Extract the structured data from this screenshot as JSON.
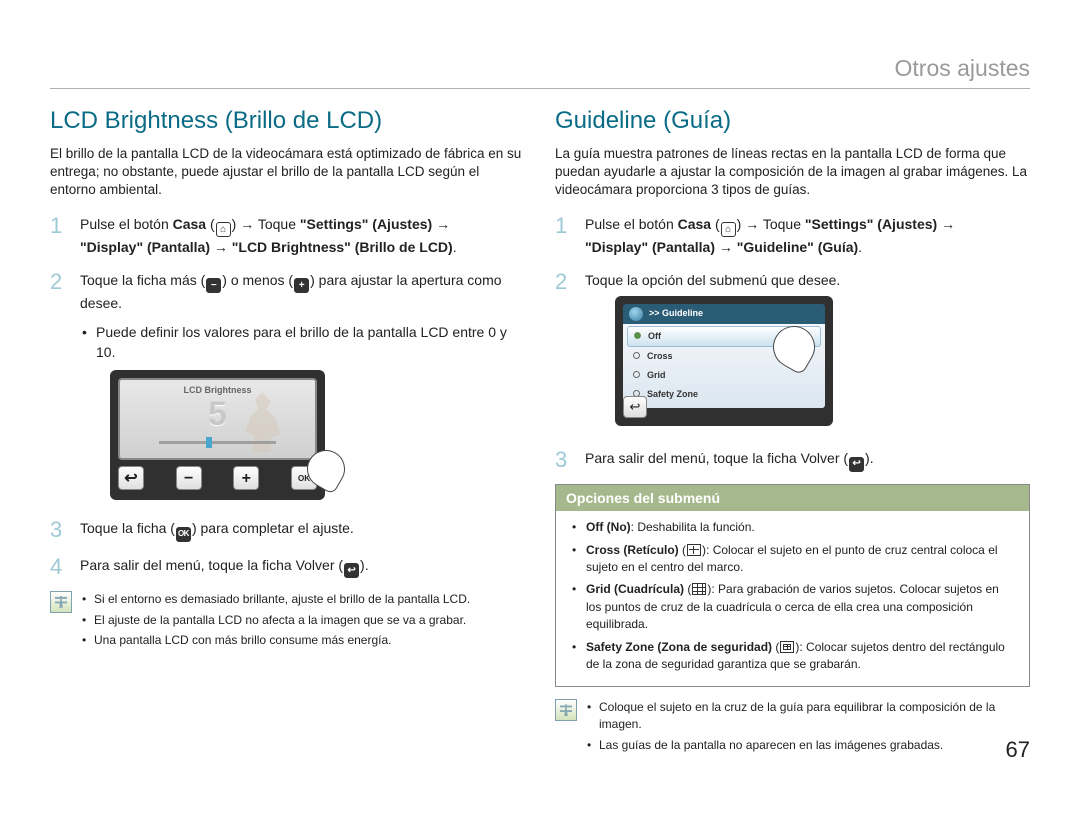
{
  "page": {
    "header": "Otros ajustes",
    "number": "67"
  },
  "lcd": {
    "heading": "LCD Brightness (Brillo de LCD)",
    "intro": "El brillo de la pantalla LCD de la videocámara está optimizado de fábrica en su entrega; no obstante, puede ajustar el brillo de la pantalla LCD según el entorno ambiental.",
    "step1_a": "Pulse el botón ",
    "step1_casa": "Casa",
    "step1_b": " → Toque ",
    "step1_settings": "\"Settings\" (Ajustes)",
    "step1_c": " → ",
    "step1_display": "\"Display\" (Pantalla) → \"LCD Brightness\" (Brillo de LCD)",
    "step1_d": ".",
    "step2_a": "Toque la ficha más (",
    "step2_b": ") o menos (",
    "step2_c": ") para ajustar la apertura como desee.",
    "step2_bullet": "Puede definir los valores para el brillo de la pantalla LCD entre 0 y 10.",
    "step3_a": "Toque la ficha (",
    "step3_b": ") para completar el ajuste.",
    "step4_a": "Para salir del menú, toque la ficha Volver (",
    "step4_b": ").",
    "info": {
      "b1": "Si el entorno es demasiado brillante, ajuste el brillo de la pantalla LCD.",
      "b2": "El ajuste de la pantalla LCD no afecta a la imagen que se va a grabar.",
      "b3": "Una pantalla LCD con más brillo consume más energía."
    },
    "img": {
      "title": "LCD Brightness",
      "value": "5",
      "minus": "−",
      "plus": "+",
      "back": "↩",
      "ok": "OK"
    }
  },
  "guide": {
    "heading": "Guideline (Guía)",
    "intro": "La guía muestra patrones de líneas rectas en la pantalla LCD de forma que puedan ayudarle a ajustar la composición de la imagen al grabar imágenes. La videocámara proporciona 3 tipos de guías.",
    "step1_a": "Pulse el botón ",
    "step1_casa": "Casa",
    "step1_b": " → Toque ",
    "step1_settings": "\"Settings\" (Ajustes)",
    "step1_c": " → ",
    "step1_display": "\"Display\" (Pantalla) → \"Guideline\" (Guía)",
    "step1_d": ".",
    "step2": "Toque la opción del submenú que desee.",
    "step3_a": "Para salir del menú, toque la ficha Volver (",
    "step3_b": ").",
    "img": {
      "title": ">> Guideline",
      "opt_off": "Off",
      "opt_cross": "Cross",
      "opt_grid": "Grid",
      "opt_safety": "Safety Zone",
      "back": "↩"
    },
    "submenu": {
      "heading": "Opciones del submenú",
      "off_label": "Off (No)",
      "off_text": ": Deshabilita la función.",
      "cross_label": "Cross (Retículo)",
      "cross_text": ": Colocar el sujeto en el punto de cruz central coloca el sujeto en el centro del marco.",
      "grid_label": "Grid (Cuadrícula)",
      "grid_text": ": Para grabación de varios sujetos. Colocar sujetos en los puntos de cruz de la cuadrícula o cerca de ella crea una composición equilibrada.",
      "safety_label": "Safety Zone (Zona de seguridad)",
      "safety_text": ": Colocar sujetos dentro del rectángulo de la zona de seguridad garantiza que se grabarán."
    },
    "info": {
      "b1": "Coloque el sujeto en la cruz de la guía para equilibrar la composición de la imagen.",
      "b2": "Las guías de la pantalla no aparecen en las imágenes grabadas."
    }
  }
}
